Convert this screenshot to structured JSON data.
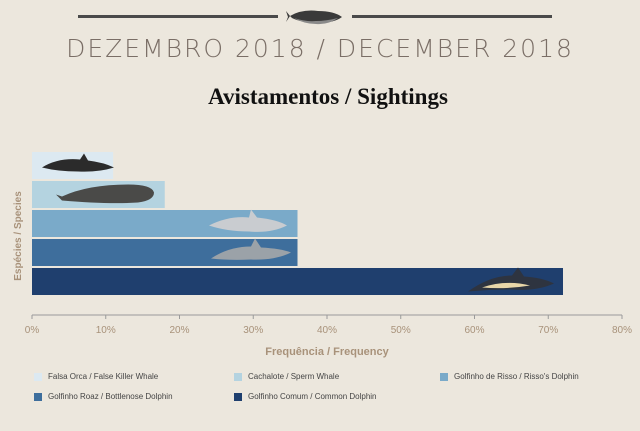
{
  "header": {
    "main_title": "DEZEMBRO 2018 / DECEMBER 2018",
    "subtitle": "Avistamentos / Sightings"
  },
  "chart_data": {
    "type": "bar",
    "orientation": "horizontal",
    "title": "Avistamentos / Sightings",
    "xlabel": "Frequência / Frequency",
    "ylabel": "Espécies / Species",
    "xlim": [
      0,
      80
    ],
    "x_ticks": [
      "0%",
      "10%",
      "20%",
      "30%",
      "40%",
      "50%",
      "60%",
      "70%",
      "80%"
    ],
    "categories": [
      "Falsa Orca / False Killer Whale",
      "Cachalote / Sperm Whale",
      "Golfinho de Risso / Risso's Dolphin",
      "Golfinho Roaz / Bottlenose Dolphin",
      "Golfinho Comum / Common Dolphin"
    ],
    "values": [
      11,
      18,
      36,
      36,
      72
    ],
    "colors": [
      "#dce9f1",
      "#b4d3e0",
      "#7aaac9",
      "#3e6e9c",
      "#1f3f6e"
    ],
    "icon_names": [
      "false-killer-whale-icon",
      "sperm-whale-icon",
      "rissos-dolphin-icon",
      "bottlenose-dolphin-icon",
      "common-dolphin-icon"
    ]
  },
  "legend": [
    {
      "label": "Falsa Orca / False Killer Whale",
      "color": "#dce9f1"
    },
    {
      "label": "Cachalote / Sperm Whale",
      "color": "#b4d3e0"
    },
    {
      "label": "Golfinho de Risso / Risso's Dolphin",
      "color": "#7aaac9"
    },
    {
      "label": "Golfinho Roaz / Bottlenose Dolphin",
      "color": "#3e6e9c"
    },
    {
      "label": "Golfinho Comum / Common Dolphin",
      "color": "#1f3f6e"
    }
  ]
}
